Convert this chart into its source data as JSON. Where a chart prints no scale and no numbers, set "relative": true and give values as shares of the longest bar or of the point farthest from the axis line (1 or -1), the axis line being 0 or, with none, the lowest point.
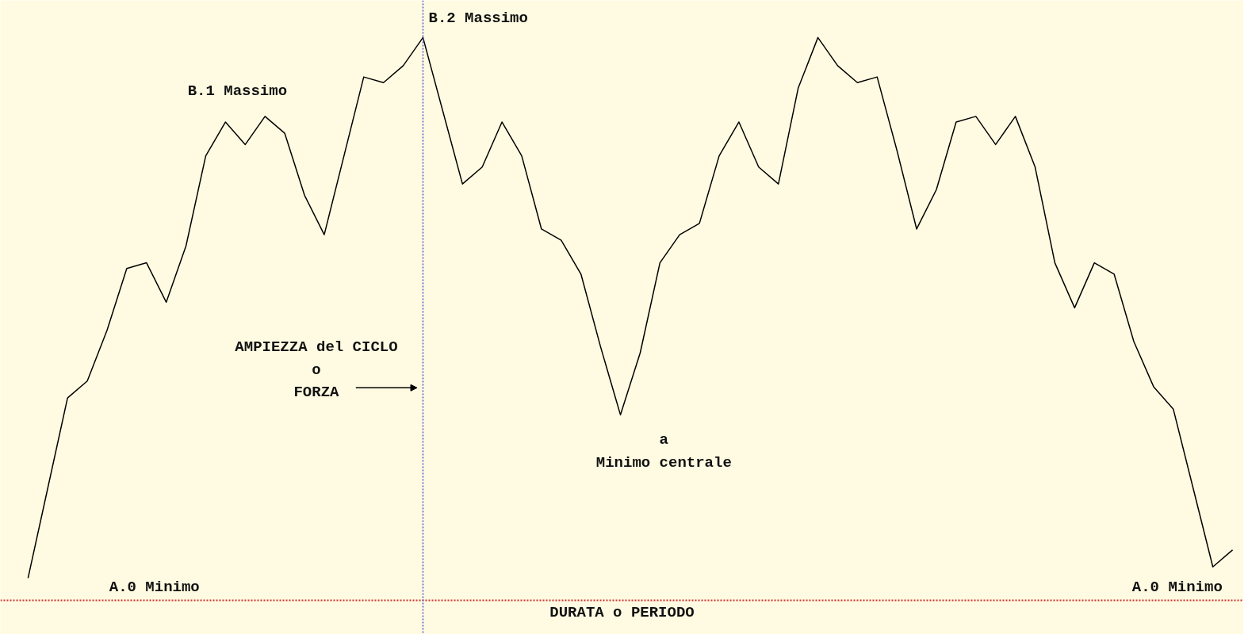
{
  "chart_data": {
    "type": "line",
    "relative": true,
    "categories": [
      null,
      null,
      null,
      null,
      null,
      null,
      null,
      null,
      null,
      null,
      null,
      null,
      null,
      null,
      null,
      null,
      null,
      null,
      null,
      null,
      null,
      null,
      null,
      null,
      null,
      null,
      null,
      null,
      null,
      null,
      null,
      null,
      null,
      null,
      null,
      null,
      null,
      null,
      null,
      null,
      null,
      null,
      null,
      null,
      null,
      null,
      null,
      null,
      null,
      null,
      null,
      null,
      null,
      null,
      null,
      null,
      null,
      null,
      null,
      null,
      null,
      null
    ],
    "series": [
      {
        "color": "#000000",
        "values": [
          0.04,
          0.2,
          0.36,
          0.39,
          0.48,
          0.59,
          0.6,
          0.53,
          0.63,
          0.79,
          0.85,
          0.81,
          0.86,
          0.83,
          0.72,
          0.65,
          0.79,
          0.93,
          0.92,
          0.95,
          1.0,
          0.87,
          0.74,
          0.77,
          0.85,
          0.79,
          0.66,
          0.64,
          0.58,
          0.45,
          0.33,
          0.44,
          0.6,
          0.65,
          0.67,
          0.79,
          0.85,
          0.77,
          0.74,
          0.91,
          1.0,
          0.95,
          0.92,
          0.93,
          0.8,
          0.66,
          0.73,
          0.85,
          0.86,
          0.81,
          0.86,
          0.77,
          0.6,
          0.52,
          0.6,
          0.58,
          0.46,
          0.38,
          0.34,
          0.2,
          0.06,
          0.09
        ]
      }
    ],
    "xlabel": "DURATA o PERIODO",
    "annotations": [
      "B.1 Massimo",
      "B.2 Massimo",
      "AMPIEZZA del CICLO\no\nFORZA",
      "a\nMinimo centrale",
      "A.0 Minimo",
      "A.0 Minimo"
    ]
  }
}
